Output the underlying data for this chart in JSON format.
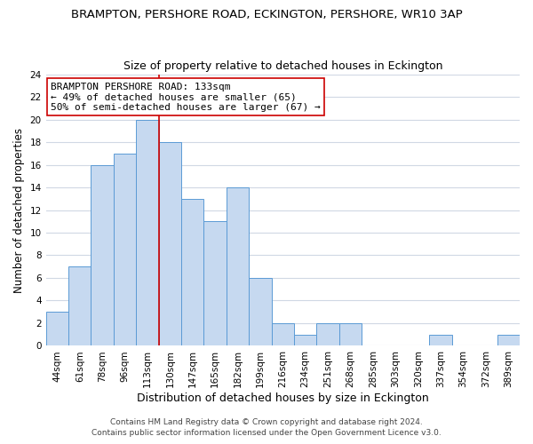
{
  "title": "BRAMPTON, PERSHORE ROAD, ECKINGTON, PERSHORE, WR10 3AP",
  "subtitle": "Size of property relative to detached houses in Eckington",
  "xlabel": "Distribution of detached houses by size in Eckington",
  "ylabel": "Number of detached properties",
  "bin_labels": [
    "44sqm",
    "61sqm",
    "78sqm",
    "96sqm",
    "113sqm",
    "130sqm",
    "147sqm",
    "165sqm",
    "182sqm",
    "199sqm",
    "216sqm",
    "234sqm",
    "251sqm",
    "268sqm",
    "285sqm",
    "303sqm",
    "320sqm",
    "337sqm",
    "354sqm",
    "372sqm",
    "389sqm"
  ],
  "bar_heights": [
    3,
    7,
    16,
    17,
    20,
    18,
    13,
    11,
    14,
    6,
    2,
    1,
    2,
    2,
    0,
    0,
    0,
    1,
    0,
    0,
    1
  ],
  "bar_color": "#c6d9f0",
  "bar_edgecolor": "#5b9bd5",
  "grid_color": "#d0d8e4",
  "vline_x": 4.5,
  "vline_color": "#cc0000",
  "annotation_text": "BRAMPTON PERSHORE ROAD: 133sqm\n← 49% of detached houses are smaller (65)\n50% of semi-detached houses are larger (67) →",
  "annotation_box_edgecolor": "#cc0000",
  "ylim": [
    0,
    24
  ],
  "yticks": [
    0,
    2,
    4,
    6,
    8,
    10,
    12,
    14,
    16,
    18,
    20,
    22,
    24
  ],
  "footer_line1": "Contains HM Land Registry data © Crown copyright and database right 2024.",
  "footer_line2": "Contains public sector information licensed under the Open Government Licence v3.0.",
  "title_fontsize": 9.5,
  "subtitle_fontsize": 9,
  "xlabel_fontsize": 9,
  "ylabel_fontsize": 8.5,
  "tick_fontsize": 7.5,
  "annotation_fontsize": 8,
  "footer_fontsize": 6.5
}
